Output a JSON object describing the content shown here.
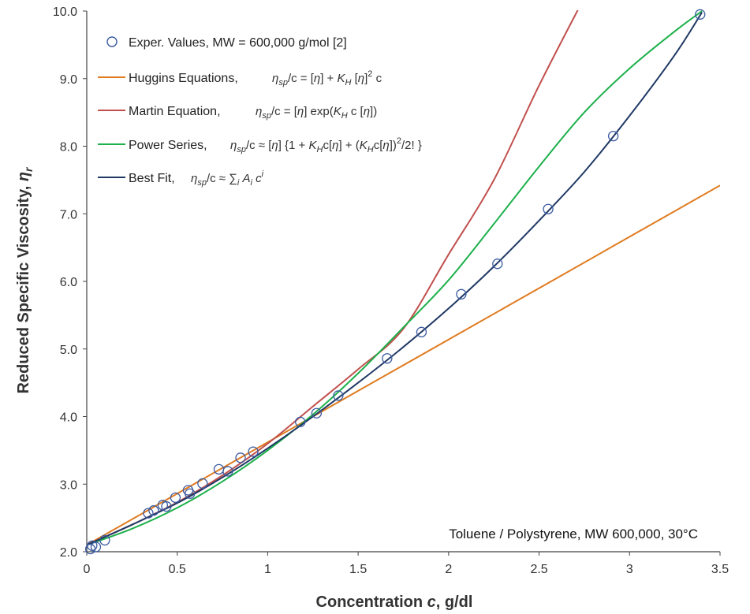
{
  "chart_data": {
    "type": "line",
    "xlabel_main": "Concentration ",
    "xlabel_var": "c",
    "xlabel_unit": ", g/dl",
    "ylabel_main": "Reduced Specific Viscosity, ",
    "ylabel_var": "η",
    "ylabel_sub": "r",
    "xlim": [
      0,
      3.5
    ],
    "ylim": [
      2.0,
      10.0
    ],
    "x_ticks": [
      "0",
      "0.5",
      "1",
      "1.5",
      "2",
      "2.5",
      "3",
      "3.5"
    ],
    "y_ticks": [
      "2.0",
      "3.0",
      "4.0",
      "5.0",
      "6.0",
      "7.0",
      "8.0",
      "9.0",
      "10.0"
    ],
    "annotation": "Toluene / Polystyrene, MW 600,000, 30°C",
    "legend_position": "top-left",
    "grid": false,
    "series": [
      {
        "name": "Exper. Values, MW = 600,000 g/mol [2]",
        "equation": "",
        "kind": "scatter",
        "color": "#3a5aa0",
        "x": [
          0.02,
          0.03,
          0.05,
          0.1,
          0.34,
          0.37,
          0.42,
          0.44,
          0.49,
          0.56,
          0.57,
          0.64,
          0.73,
          0.78,
          0.85,
          0.92,
          1.18,
          1.27,
          1.39,
          1.66,
          1.85,
          2.07,
          2.27,
          2.55,
          2.91,
          3.39
        ],
        "y": [
          2.04,
          2.09,
          2.07,
          2.17,
          2.57,
          2.61,
          2.69,
          2.67,
          2.8,
          2.91,
          2.86,
          3.01,
          3.22,
          3.19,
          3.39,
          3.48,
          3.92,
          4.05,
          4.31,
          4.86,
          5.25,
          5.81,
          6.26,
          7.07,
          8.15,
          9.95
        ]
      },
      {
        "name": "Huggins Equations,",
        "equation": "ηsp/c = [η] + KH [η]2 c",
        "kind": "line",
        "color": "#e07b20",
        "x": [
          0,
          0.5,
          1,
          1.5,
          2,
          2.5,
          3,
          3.5
        ],
        "y": [
          2.1,
          2.86,
          3.62,
          4.38,
          5.14,
          5.9,
          6.66,
          7.42
        ]
      },
      {
        "name": "Martin Equation,",
        "equation": "ηsp/c = [η] exp(KH c [η])",
        "kind": "line",
        "color": "#c0504d",
        "x": [
          0,
          0.25,
          0.5,
          0.75,
          1,
          1.25,
          1.5,
          1.75,
          2,
          2.25,
          2.5,
          2.75
        ],
        "y": [
          2.1,
          2.4,
          2.73,
          3.13,
          3.6,
          4.15,
          4.7,
          5.3,
          6.4,
          7.5,
          8.9,
          10.2
        ]
      },
      {
        "name": "Power Series,",
        "equation": "ηsp/c ≈ [η] {1 + KHc[η] + (KHc[η])2/2! }",
        "kind": "line",
        "color": "#1db04b",
        "x": [
          0,
          0.25,
          0.5,
          0.75,
          1,
          1.25,
          1.5,
          1.75,
          2,
          2.25,
          2.5,
          2.75,
          3,
          3.25,
          3.4
        ],
        "y": [
          2.1,
          2.34,
          2.65,
          3.04,
          3.5,
          4.03,
          4.64,
          5.32,
          6.02,
          6.85,
          7.7,
          8.5,
          9.15,
          9.7,
          10.0
        ]
      },
      {
        "name": "Best Fit,",
        "equation": "ηsp/c ≈ ∑i Ai ci",
        "kind": "line",
        "color": "#1f3864",
        "x": [
          0,
          0.25,
          0.5,
          0.75,
          1,
          1.25,
          1.5,
          1.75,
          2,
          2.25,
          2.5,
          2.75,
          3,
          3.25,
          3.4
        ],
        "y": [
          2.1,
          2.4,
          2.72,
          3.1,
          3.53,
          4.0,
          4.5,
          5.03,
          5.6,
          6.22,
          6.9,
          7.62,
          8.45,
          9.35,
          9.98
        ]
      }
    ]
  }
}
